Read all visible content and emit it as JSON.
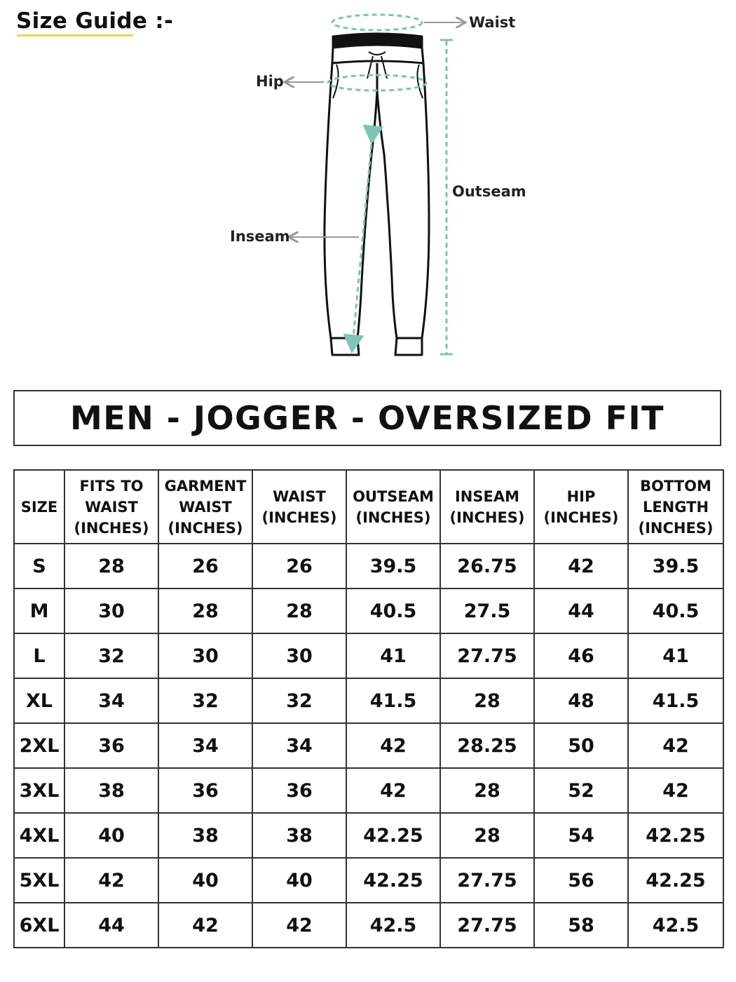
{
  "guide": {
    "title": "Size Guide :-",
    "labels": {
      "waist": "Waist",
      "hip": "Hip",
      "outseam": "Outseam",
      "inseam": "Inseam"
    }
  },
  "colors": {
    "accent_underline": "#f0d24a",
    "measure_lines": "#7cc4b4",
    "arrow_gray": "#999999"
  },
  "fit_title": "MEN - JOGGER - OVERSIZED FIT",
  "table": {
    "headers": [
      [
        "SIZE"
      ],
      [
        "FITS TO",
        "WAIST",
        "(INCHES)"
      ],
      [
        "GARMENT",
        "WAIST",
        "(INCHES)"
      ],
      [
        "WAIST",
        "(INCHES)"
      ],
      [
        "OUTSEAM",
        "(INCHES)"
      ],
      [
        "INSEAM",
        "(INCHES)"
      ],
      [
        "HIP",
        "(INCHES)"
      ],
      [
        "BOTTOM",
        "LENGTH",
        "(INCHES)"
      ]
    ],
    "rows": [
      [
        "S",
        "28",
        "26",
        "26",
        "39.5",
        "26.75",
        "42",
        "39.5"
      ],
      [
        "M",
        "30",
        "28",
        "28",
        "40.5",
        "27.5",
        "44",
        "40.5"
      ],
      [
        "L",
        "32",
        "30",
        "30",
        "41",
        "27.75",
        "46",
        "41"
      ],
      [
        "XL",
        "34",
        "32",
        "32",
        "41.5",
        "28",
        "48",
        "41.5"
      ],
      [
        "2XL",
        "36",
        "34",
        "34",
        "42",
        "28.25",
        "50",
        "42"
      ],
      [
        "3XL",
        "38",
        "36",
        "36",
        "42",
        "28",
        "52",
        "42"
      ],
      [
        "4XL",
        "40",
        "38",
        "38",
        "42.25",
        "28",
        "54",
        "42.25"
      ],
      [
        "5XL",
        "42",
        "40",
        "40",
        "42.25",
        "27.75",
        "56",
        "42.25"
      ],
      [
        "6XL",
        "44",
        "42",
        "42",
        "42.5",
        "27.75",
        "58",
        "42.5"
      ]
    ]
  }
}
